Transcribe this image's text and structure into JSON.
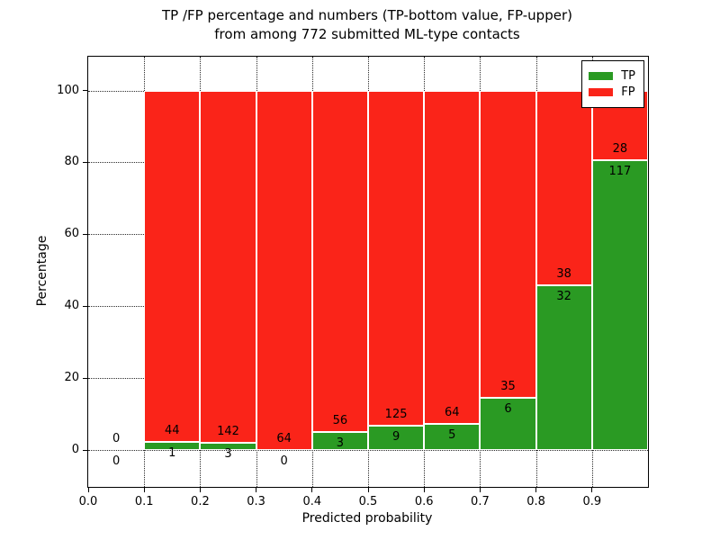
{
  "chart_data": {
    "type": "bar",
    "stacked": true,
    "title_lines": [
      "TP /FP percentage and numbers (TP-bottom value, FP-upper)",
      "from among 772 submitted ML-type contacts"
    ],
    "xlabel": "Predicted probability",
    "ylabel": "Percentage",
    "xlim": [
      0.0,
      1.0
    ],
    "ylim_visible": [
      0,
      100
    ],
    "grid": "dotted",
    "x_ticks": [
      {
        "v": 0.0,
        "label": "0.0"
      },
      {
        "v": 0.1,
        "label": "0.1"
      },
      {
        "v": 0.2,
        "label": "0.2"
      },
      {
        "v": 0.3,
        "label": "0.3"
      },
      {
        "v": 0.4,
        "label": "0.4"
      },
      {
        "v": 0.5,
        "label": "0.5"
      },
      {
        "v": 0.6,
        "label": "0.6"
      },
      {
        "v": 0.7,
        "label": "0.7"
      },
      {
        "v": 0.8,
        "label": "0.8"
      },
      {
        "v": 0.9,
        "label": "0.9"
      }
    ],
    "y_ticks": [
      {
        "v": 0,
        "label": "0"
      },
      {
        "v": 20,
        "label": "20"
      },
      {
        "v": 40,
        "label": "40"
      },
      {
        "v": 60,
        "label": "60"
      },
      {
        "v": 80,
        "label": "80"
      },
      {
        "v": 100,
        "label": "100"
      }
    ],
    "legend": {
      "position": "upper right",
      "items": [
        {
          "label": "TP",
          "color": "#2a9a23"
        },
        {
          "label": "FP",
          "color": "#fa2419"
        }
      ]
    },
    "colors": {
      "tp": "#2a9a23",
      "fp": "#fa2419",
      "bar_edge": "#ffffff",
      "grid": "#2b2b2b",
      "text": "#000000"
    },
    "bins": [
      {
        "range": [
          0.0,
          0.1
        ],
        "tp": 0,
        "fp": 0,
        "bar_drawn": false
      },
      {
        "range": [
          0.1,
          0.2
        ],
        "tp": 1,
        "fp": 44,
        "bar_drawn": true
      },
      {
        "range": [
          0.2,
          0.3
        ],
        "tp": 3,
        "fp": 142,
        "bar_drawn": true
      },
      {
        "range": [
          0.3,
          0.4
        ],
        "tp": 0,
        "fp": 64,
        "bar_drawn": true
      },
      {
        "range": [
          0.4,
          0.5
        ],
        "tp": 3,
        "fp": 56,
        "bar_drawn": true
      },
      {
        "range": [
          0.5,
          0.6
        ],
        "tp": 9,
        "fp": 125,
        "bar_drawn": true
      },
      {
        "range": [
          0.6,
          0.7
        ],
        "tp": 5,
        "fp": 64,
        "bar_drawn": true
      },
      {
        "range": [
          0.7,
          0.8
        ],
        "tp": 6,
        "fp": 35,
        "bar_drawn": true
      },
      {
        "range": [
          0.8,
          0.9
        ],
        "tp": 32,
        "fp": 38,
        "bar_drawn": true
      },
      {
        "range": [
          0.9,
          1.0
        ],
        "tp": 117,
        "fp": 28,
        "bar_drawn": true
      }
    ]
  }
}
